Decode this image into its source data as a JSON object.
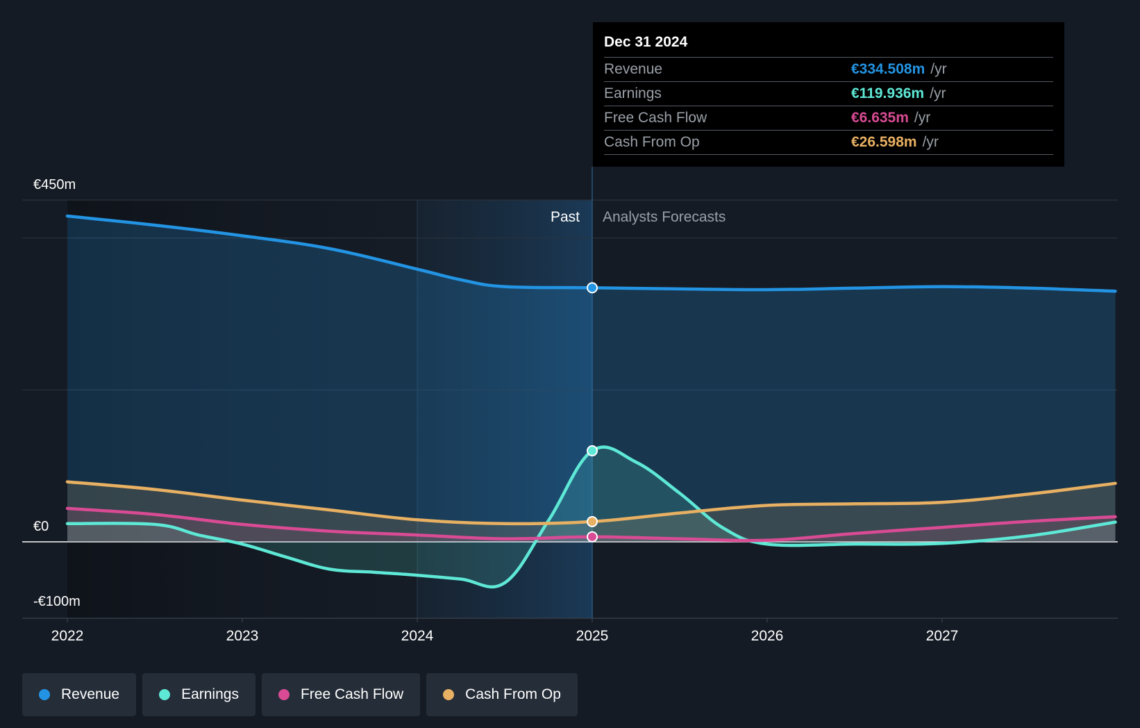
{
  "chart_data": {
    "type": "area",
    "y_axis_labels": [
      "€450m",
      "€0",
      "-€100m"
    ],
    "x_ticks": [
      "2022",
      "2023",
      "2024",
      "2025",
      "2026",
      "2027"
    ],
    "ylim": [
      -100,
      450
    ],
    "xlim": [
      2021.75,
      2027.99
    ],
    "past_label": "Past",
    "forecast_label": "Analysts Forecasts",
    "divider_x": 2025.0,
    "shade_start_x": 2024.0,
    "series": [
      {
        "name": "Revenue",
        "color": "#2394e3",
        "values": [
          [
            2022.0,
            429
          ],
          [
            2022.5,
            417
          ],
          [
            2023.0,
            403
          ],
          [
            2023.5,
            386
          ],
          [
            2024.0,
            359
          ],
          [
            2024.25,
            345
          ],
          [
            2024.5,
            336
          ],
          [
            2025.0,
            334.5
          ],
          [
            2025.5,
            333
          ],
          [
            2026.0,
            332
          ],
          [
            2026.5,
            334
          ],
          [
            2027.0,
            336
          ],
          [
            2027.5,
            334
          ],
          [
            2027.99,
            330
          ]
        ]
      },
      {
        "name": "Earnings",
        "color": "#5ee8d6",
        "values": [
          [
            2022.0,
            24
          ],
          [
            2022.5,
            23
          ],
          [
            2022.75,
            9
          ],
          [
            2023.0,
            -3
          ],
          [
            2023.25,
            -20
          ],
          [
            2023.5,
            -36
          ],
          [
            2023.75,
            -40
          ],
          [
            2024.0,
            -44
          ],
          [
            2024.25,
            -49
          ],
          [
            2024.5,
            -54
          ],
          [
            2024.75,
            28
          ],
          [
            2025.0,
            119.9
          ],
          [
            2025.25,
            105
          ],
          [
            2025.5,
            64
          ],
          [
            2025.75,
            18
          ],
          [
            2026.0,
            -3
          ],
          [
            2026.5,
            -3
          ],
          [
            2027.0,
            -2
          ],
          [
            2027.5,
            8
          ],
          [
            2027.99,
            26
          ]
        ]
      },
      {
        "name": "Free Cash Flow",
        "color": "#d94b94",
        "values": [
          [
            2022.0,
            44
          ],
          [
            2022.5,
            36
          ],
          [
            2023.0,
            23
          ],
          [
            2023.5,
            14
          ],
          [
            2024.0,
            9
          ],
          [
            2024.5,
            4
          ],
          [
            2025.0,
            6.6
          ],
          [
            2025.5,
            4
          ],
          [
            2026.0,
            2
          ],
          [
            2026.5,
            11
          ],
          [
            2027.0,
            19
          ],
          [
            2027.5,
            27
          ],
          [
            2027.99,
            33
          ]
        ]
      },
      {
        "name": "Cash From Op",
        "color": "#e8b062",
        "values": [
          [
            2022.0,
            79
          ],
          [
            2022.5,
            69
          ],
          [
            2023.0,
            55
          ],
          [
            2023.5,
            42
          ],
          [
            2024.0,
            29
          ],
          [
            2024.5,
            24
          ],
          [
            2025.0,
            26.6
          ],
          [
            2025.5,
            38
          ],
          [
            2026.0,
            48
          ],
          [
            2026.5,
            50
          ],
          [
            2027.0,
            52
          ],
          [
            2027.5,
            63
          ],
          [
            2027.99,
            77
          ]
        ]
      }
    ],
    "highlight_x": 2025.0
  },
  "tooltip": {
    "date": "Dec 31 2024",
    "unit": "/yr",
    "rows": [
      {
        "name": "Revenue",
        "value": "€334.508m",
        "color": "#2394e3"
      },
      {
        "name": "Earnings",
        "value": "€119.936m",
        "color": "#5ee8d6"
      },
      {
        "name": "Free Cash Flow",
        "value": "€6.635m",
        "color": "#d94b94"
      },
      {
        "name": "Cash From Op",
        "value": "€26.598m",
        "color": "#e8b062"
      }
    ]
  },
  "legend": [
    {
      "label": "Revenue",
      "color": "#2394e3"
    },
    {
      "label": "Earnings",
      "color": "#5ee8d6"
    },
    {
      "label": "Free Cash Flow",
      "color": "#d94b94"
    },
    {
      "label": "Cash From Op",
      "color": "#e8b062"
    }
  ]
}
